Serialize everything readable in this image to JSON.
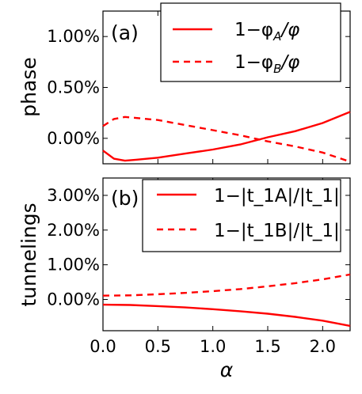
{
  "chart_data": [
    {
      "type": "line",
      "panel_label": "(a)",
      "ylabel": "phase",
      "xlabel": "",
      "xlim": [
        0.0,
        2.25
      ],
      "ylim": [
        -0.25,
        1.25
      ],
      "x_ticks": [
        0.0,
        0.5,
        1.0,
        1.5,
        2.0
      ],
      "x_tick_labels": [
        "",
        "",
        "",
        "",
        ""
      ],
      "y_ticks": [
        0.0,
        0.5,
        1.0
      ],
      "y_tick_labels": [
        "0.00%",
        "0.50%",
        "1.00%"
      ],
      "grid": false,
      "legend_position": "top-right",
      "series": [
        {
          "name": "1−φ_A/φ",
          "legend_main": "1−φ",
          "legend_sub1": "A",
          "legend_rest": "/φ",
          "style": "solid",
          "color": "#ff0000",
          "x": [
            0.0,
            0.1,
            0.2,
            0.3,
            0.5,
            0.75,
            1.0,
            1.25,
            1.5,
            1.75,
            2.0,
            2.25
          ],
          "y": [
            -0.12,
            -0.2,
            -0.22,
            -0.21,
            -0.19,
            -0.15,
            -0.11,
            -0.06,
            0.01,
            0.07,
            0.15,
            0.26
          ]
        },
        {
          "name": "1−φ_B/φ",
          "legend_main": "1−φ",
          "legend_sub1": "B",
          "legend_rest": "/φ",
          "style": "dashed",
          "color": "#ff0000",
          "x": [
            0.0,
            0.1,
            0.2,
            0.3,
            0.5,
            0.75,
            1.0,
            1.25,
            1.5,
            1.75,
            2.0,
            2.25
          ],
          "y": [
            0.12,
            0.19,
            0.21,
            0.2,
            0.18,
            0.13,
            0.08,
            0.03,
            -0.03,
            -0.08,
            -0.14,
            -0.23
          ]
        }
      ]
    },
    {
      "type": "line",
      "panel_label": "(b)",
      "ylabel": "tunnelings",
      "xlabel": "α",
      "xlim": [
        0.0,
        2.25
      ],
      "ylim": [
        -0.9,
        3.5
      ],
      "x_ticks": [
        0.0,
        0.5,
        1.0,
        1.5,
        2.0
      ],
      "x_tick_labels": [
        "0.0",
        "0.5",
        "1.0",
        "1.5",
        "2.0"
      ],
      "y_ticks": [
        0.0,
        1.0,
        2.0,
        3.0
      ],
      "y_tick_labels": [
        "0.00%",
        "1.00%",
        "2.00%",
        "3.00%"
      ],
      "grid": false,
      "legend_position": "top-right",
      "series": [
        {
          "name": "1−|t_1A|/|t_1|",
          "style": "solid",
          "color": "#ff0000",
          "x": [
            0.0,
            0.25,
            0.5,
            0.75,
            1.0,
            1.25,
            1.5,
            1.75,
            2.0,
            2.25
          ],
          "y": [
            -0.15,
            -0.16,
            -0.19,
            -0.23,
            -0.28,
            -0.34,
            -0.41,
            -0.5,
            -0.61,
            -0.76
          ]
        },
        {
          "name": "1−|t_1B|/|t_1|",
          "style": "dashed",
          "color": "#ff0000",
          "x": [
            0.0,
            0.25,
            0.5,
            0.75,
            1.0,
            1.25,
            1.5,
            1.75,
            2.0,
            2.25
          ],
          "y": [
            0.11,
            0.12,
            0.15,
            0.19,
            0.24,
            0.3,
            0.38,
            0.47,
            0.58,
            0.72
          ]
        }
      ]
    }
  ]
}
